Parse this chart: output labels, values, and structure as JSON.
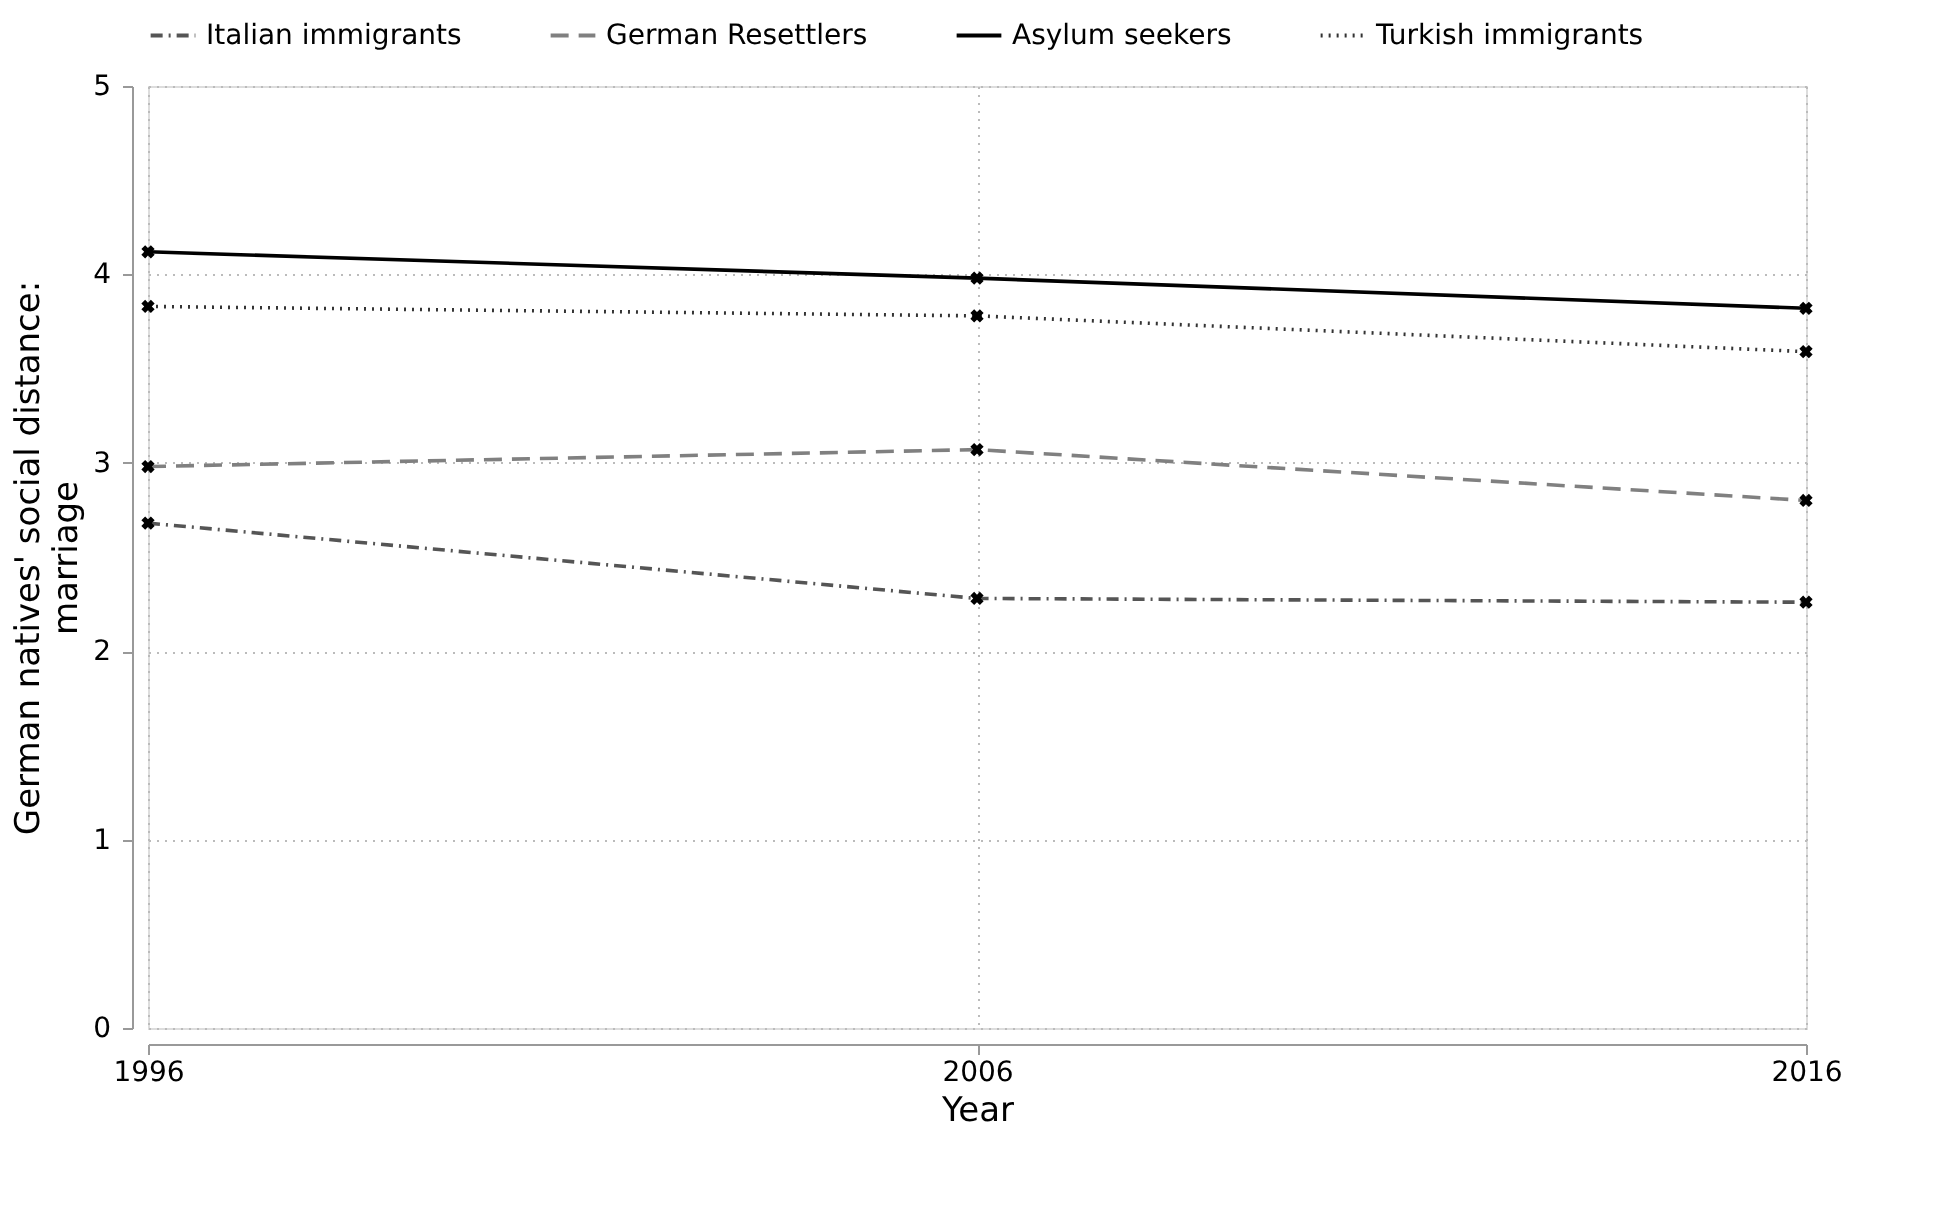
{
  "chart_data": {
    "type": "line",
    "xlabel": "Year",
    "ylabel": "German natives' social distance: marriage",
    "x": [
      1996,
      2006,
      2016
    ],
    "xlim": [
      1996,
      2016
    ],
    "xticks": [
      1996,
      2006,
      2016
    ],
    "ylim": [
      0,
      5
    ],
    "yticks": [
      0,
      1,
      2,
      3,
      4,
      5
    ],
    "grid": true,
    "legend": "top",
    "marker": "cross",
    "series": [
      {
        "name": "Italian immigrants",
        "color": "#555555",
        "line_style": "dashdot",
        "values": [
          2.68,
          2.28,
          2.26
        ]
      },
      {
        "name": "German Resettlers",
        "color": "#808080",
        "line_style": "dashed",
        "values": [
          2.98,
          3.07,
          2.8
        ]
      },
      {
        "name": "Asylum seekers",
        "color": "#000000",
        "line_style": "solid",
        "values": [
          4.12,
          3.98,
          3.82
        ]
      },
      {
        "name": "Turkish immigrants",
        "color": "#333333",
        "line_style": "dotted",
        "values": [
          3.83,
          3.78,
          3.59
        ]
      }
    ]
  }
}
